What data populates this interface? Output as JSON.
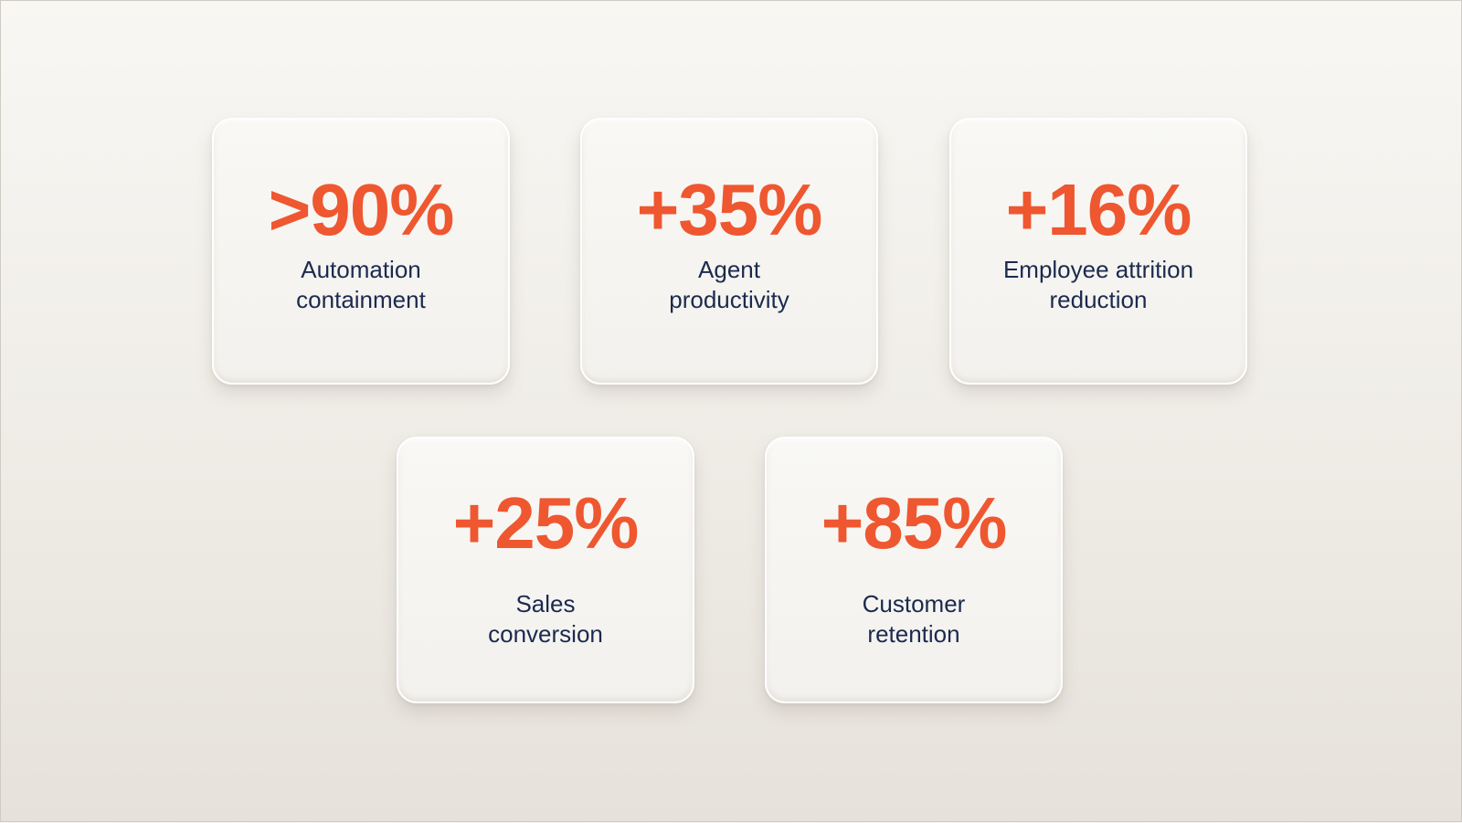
{
  "metrics": [
    {
      "value": ">90%",
      "label_line1": "Automation",
      "label_line2": "containment"
    },
    {
      "value": "+35%",
      "label_line1": "Agent",
      "label_line2": "productivity"
    },
    {
      "value": "+16%",
      "label_line1": "Employee attrition",
      "label_line2": "reduction"
    },
    {
      "value": "+25%",
      "label_line1": "Sales",
      "label_line2": "conversion"
    },
    {
      "value": "+85%",
      "label_line1": "Customer",
      "label_line2": "retention"
    }
  ],
  "colors": {
    "value_color": "#ee5730",
    "label_color": "#1b2a4e",
    "card_background": "#f6f4f0"
  }
}
